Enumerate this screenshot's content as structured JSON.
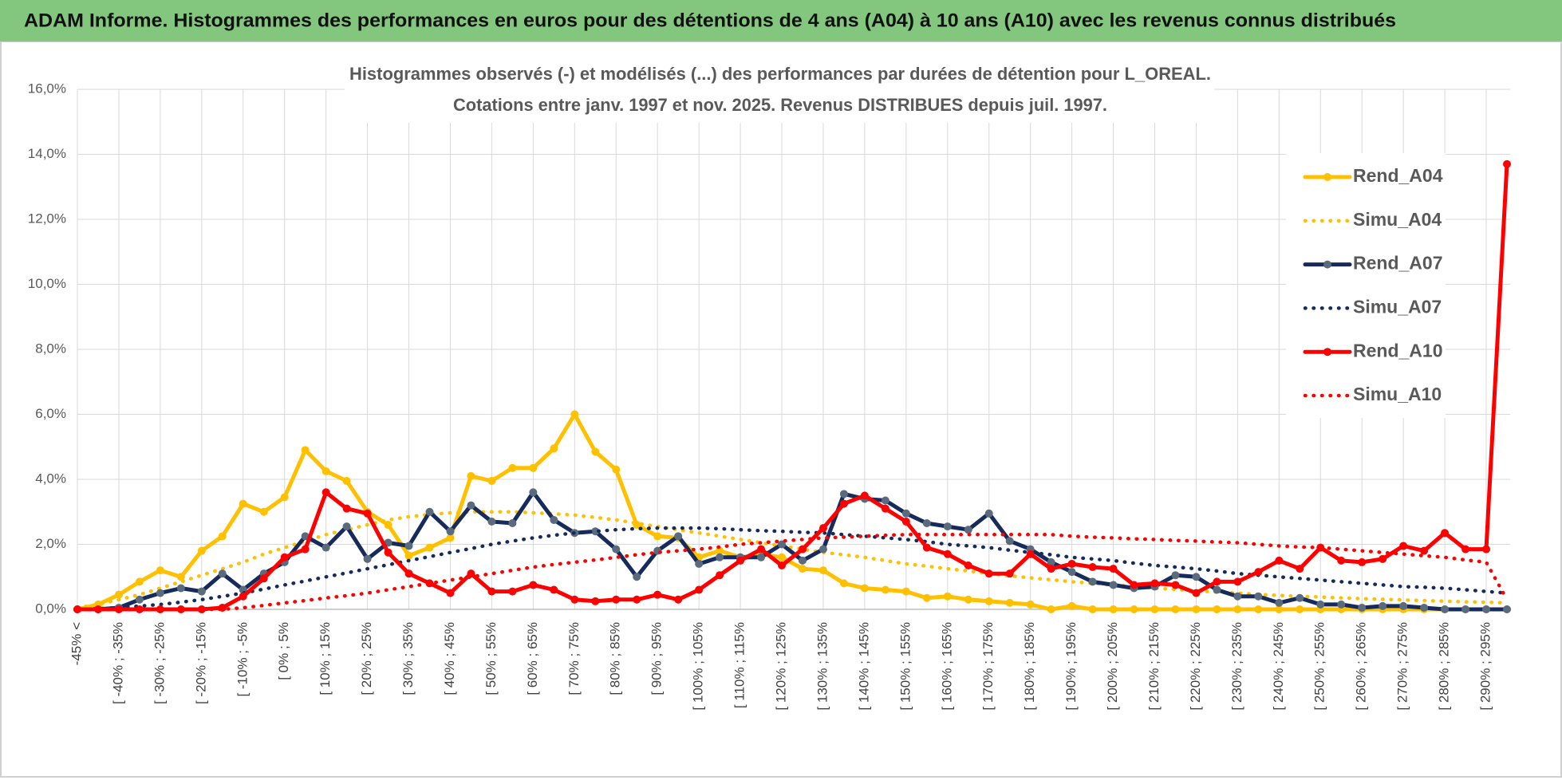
{
  "header": {
    "title": "ADAM Informe. Histogrammes des performances en euros pour des détentions de 4 ans (A04) à 10 ans (A10) avec les revenus connus distribués"
  },
  "chart_data": {
    "type": "line",
    "title": "Histogrammes observés (-) et modélisés (...) des performances par durées de détention pour L_OREAL.",
    "subtitle": "Cotations entre janv. 1997 et nov. 2025. Revenus DISTRIBUES depuis juil. 1997.",
    "categories": [
      "-45% <",
      null,
      "[ -40% ; -35%",
      null,
      "[ -30% ; -25%",
      null,
      "[ -20% ; -15%",
      null,
      "[ -10% ; -5%",
      null,
      "[ 0% ; 5%",
      null,
      "[ 10% ; 15%",
      null,
      "[ 20% ; 25%",
      null,
      "[ 30% ; 35%",
      null,
      "[ 40% ; 45%",
      null,
      "[ 50% ; 55%",
      null,
      "[ 60% ; 65%",
      null,
      "[ 70% ; 75%",
      null,
      "[ 80% ; 85%",
      null,
      "[ 90% ; 95%",
      null,
      "[ 100% ; 105%",
      null,
      "[ 110% ; 115%",
      null,
      "[ 120% ; 125%",
      null,
      "[ 130% ; 135%",
      null,
      "[ 140% ; 145%",
      null,
      "[ 150% ; 155%",
      null,
      "[ 160% ; 165%",
      null,
      "[ 170% ; 175%",
      null,
      "[ 180% ; 185%",
      null,
      "[ 190% ; 195%",
      null,
      "[ 200% ; 205%",
      null,
      "[ 210% ; 215%",
      null,
      "[ 220% ; 225%",
      null,
      "[ 230% ; 235%",
      null,
      "[ 240% ; 245%",
      null,
      "[ 250% ; 255%",
      null,
      "[ 260% ; 265%",
      null,
      "[ 270% ; 275%",
      null,
      "[ 280% ; 285%",
      null,
      "[ 290% ; 295%",
      null
    ],
    "ylim": [
      0,
      16
    ],
    "yticks": [
      {
        "value": 0,
        "label": "0,0%"
      },
      {
        "value": 2,
        "label": "2,0%"
      },
      {
        "value": 4,
        "label": "4,0%"
      },
      {
        "value": 6,
        "label": "6,0%"
      },
      {
        "value": 8,
        "label": "8,0%"
      },
      {
        "value": 10,
        "label": "10,0%"
      },
      {
        "value": 12,
        "label": "12,0%"
      },
      {
        "value": 14,
        "label": "14,0%"
      },
      {
        "value": 16,
        "label": "16,0%"
      }
    ],
    "grid": true,
    "legend": "right",
    "series": [
      {
        "name": "Rend_A04",
        "color": "#FFC000",
        "style": "solid",
        "markers": true,
        "values": [
          0,
          0.15,
          0.45,
          0.85,
          1.2,
          1.0,
          1.8,
          2.25,
          3.25,
          3.0,
          3.45,
          4.9,
          4.25,
          3.95,
          3.0,
          2.6,
          1.65,
          1.9,
          2.2,
          4.1,
          3.95,
          4.35,
          4.35,
          4.95,
          6.0,
          4.85,
          4.3,
          2.6,
          2.25,
          2.2,
          1.6,
          1.8,
          1.6,
          1.7,
          1.6,
          1.25,
          1.2,
          0.8,
          0.65,
          0.6,
          0.55,
          0.35,
          0.4,
          0.3,
          0.25,
          0.2,
          0.15,
          0,
          0.1,
          0,
          0,
          0,
          0,
          0,
          0,
          0,
          0,
          0,
          0,
          0,
          0,
          0,
          0,
          0,
          0,
          0,
          0,
          0,
          0,
          0
        ]
      },
      {
        "name": "Simu_A04",
        "color": "#FFC000",
        "style": "dotted",
        "markers": false,
        "values": [
          0.05,
          0.15,
          0.3,
          0.45,
          0.65,
          0.85,
          1.05,
          1.25,
          1.45,
          1.7,
          1.9,
          2.1,
          2.3,
          2.45,
          2.6,
          2.75,
          2.85,
          2.92,
          2.97,
          3.0,
          3.0,
          3.0,
          2.97,
          2.94,
          2.9,
          2.83,
          2.75,
          2.65,
          2.55,
          2.45,
          2.35,
          2.25,
          2.15,
          2.05,
          1.95,
          1.85,
          1.75,
          1.68,
          1.6,
          1.5,
          1.4,
          1.33,
          1.25,
          1.18,
          1.1,
          1.03,
          0.97,
          0.91,
          0.85,
          0.8,
          0.75,
          0.7,
          0.65,
          0.61,
          0.57,
          0.53,
          0.5,
          0.46,
          0.43,
          0.4,
          0.38,
          0.35,
          0.33,
          0.31,
          0.29,
          0.27,
          0.25,
          0.23,
          0.22,
          0.2
        ]
      },
      {
        "name": "Rend_A07",
        "color": "#162B5C",
        "marker_color": "#5B6B7E",
        "style": "solid",
        "markers": true,
        "values": [
          0,
          0,
          0.05,
          0.3,
          0.5,
          0.65,
          0.55,
          1.1,
          0.6,
          1.1,
          1.45,
          2.25,
          1.9,
          2.55,
          1.55,
          2.05,
          1.95,
          3.0,
          2.4,
          3.2,
          2.7,
          2.65,
          3.6,
          2.75,
          2.35,
          2.4,
          1.85,
          1.0,
          1.8,
          2.25,
          1.4,
          1.6,
          1.6,
          1.6,
          2.0,
          1.5,
          1.85,
          3.55,
          3.4,
          3.35,
          2.95,
          2.65,
          2.55,
          2.45,
          2.95,
          2.1,
          1.85,
          1.45,
          1.15,
          0.85,
          0.75,
          0.65,
          0.7,
          1.05,
          1.0,
          0.6,
          0.4,
          0.4,
          0.2,
          0.35,
          0.15,
          0.15,
          0.05,
          0.1,
          0.1,
          0.05,
          0,
          0,
          0,
          0
        ]
      },
      {
        "name": "Simu_A07",
        "color": "#162B5C",
        "style": "dotted",
        "markers": false,
        "values": [
          0,
          0.02,
          0.05,
          0.1,
          0.15,
          0.22,
          0.3,
          0.4,
          0.5,
          0.62,
          0.75,
          0.87,
          1.0,
          1.12,
          1.25,
          1.37,
          1.5,
          1.62,
          1.75,
          1.87,
          2.0,
          2.1,
          2.2,
          2.28,
          2.35,
          2.4,
          2.45,
          2.48,
          2.5,
          2.5,
          2.5,
          2.48,
          2.45,
          2.42,
          2.4,
          2.37,
          2.35,
          2.3,
          2.25,
          2.2,
          2.15,
          2.08,
          2.0,
          1.95,
          1.9,
          1.82,
          1.75,
          1.68,
          1.6,
          1.55,
          1.5,
          1.42,
          1.35,
          1.3,
          1.25,
          1.18,
          1.1,
          1.05,
          1.0,
          0.95,
          0.9,
          0.85,
          0.8,
          0.75,
          0.7,
          0.68,
          0.65,
          0.6,
          0.55,
          0.5
        ]
      },
      {
        "name": "Rend_A10",
        "color": "#FF0000",
        "style": "solid",
        "markers": true,
        "values": [
          0,
          0,
          0,
          0,
          0,
          0,
          0,
          0.05,
          0.4,
          0.95,
          1.6,
          1.85,
          3.6,
          3.1,
          2.95,
          1.75,
          1.1,
          0.8,
          0.5,
          1.1,
          0.55,
          0.55,
          0.75,
          0.6,
          0.3,
          0.25,
          0.3,
          0.3,
          0.45,
          0.3,
          0.6,
          1.05,
          1.5,
          1.85,
          1.35,
          1.85,
          2.5,
          3.25,
          3.5,
          3.1,
          2.7,
          1.9,
          1.7,
          1.35,
          1.1,
          1.1,
          1.7,
          1.25,
          1.4,
          1.3,
          1.25,
          0.75,
          0.8,
          0.75,
          0.5,
          0.85,
          0.85,
          1.15,
          1.5,
          1.25,
          1.9,
          1.5,
          1.45,
          1.55,
          1.95,
          1.8,
          2.35,
          1.85,
          1.85,
          13.7
        ]
      },
      {
        "name": "Simu_A10",
        "color": "#FF0000",
        "style": "dotted",
        "markers": false,
        "values": [
          0,
          0,
          0,
          0,
          0,
          0,
          0,
          0,
          0.05,
          0.12,
          0.2,
          0.27,
          0.35,
          0.42,
          0.5,
          0.6,
          0.7,
          0.8,
          0.9,
          1.0,
          1.1,
          1.2,
          1.3,
          1.38,
          1.45,
          1.52,
          1.6,
          1.68,
          1.75,
          1.8,
          1.85,
          1.92,
          2.0,
          2.05,
          2.1,
          2.15,
          2.2,
          2.22,
          2.25,
          2.28,
          2.3,
          2.3,
          2.3,
          2.3,
          2.3,
          2.3,
          2.3,
          2.3,
          2.25,
          2.22,
          2.2,
          2.17,
          2.15,
          2.12,
          2.1,
          2.07,
          2.05,
          2.0,
          1.95,
          1.92,
          1.9,
          1.85,
          1.8,
          1.75,
          1.7,
          1.65,
          1.6,
          1.52,
          1.45,
          0.3
        ]
      }
    ]
  }
}
